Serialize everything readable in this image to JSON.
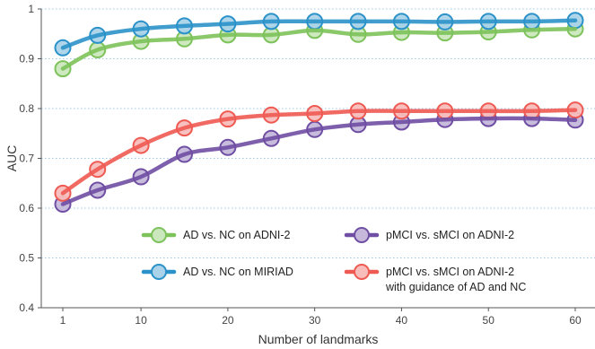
{
  "chart_data": {
    "type": "line",
    "title": "",
    "xlabel": "Number of landmarks",
    "ylabel": "AUC",
    "x_ticks": [
      1,
      10,
      20,
      30,
      40,
      50,
      60
    ],
    "y_ticks": [
      "0.4",
      "0.5",
      "0.6",
      "0.7",
      "0.8",
      "0.9",
      "1"
    ],
    "xlim": [
      1,
      60
    ],
    "ylim": [
      0.4,
      1.0
    ],
    "grid": "horizontal dotted",
    "legend_placement": "lower-right",
    "x": [
      1,
      5,
      10,
      15,
      20,
      25,
      30,
      35,
      40,
      45,
      50,
      55,
      60
    ],
    "series": [
      {
        "name": "AD vs. NC on ADNI-2",
        "color": "#7dc25a",
        "values": [
          0.88,
          0.918,
          0.935,
          0.94,
          0.948,
          0.948,
          0.957,
          0.949,
          0.953,
          0.952,
          0.954,
          0.958,
          0.96
        ]
      },
      {
        "name": "AD vs. NC on MIRIAD",
        "color": "#2b92c9",
        "values": [
          0.922,
          0.947,
          0.96,
          0.966,
          0.97,
          0.975,
          0.975,
          0.975,
          0.975,
          0.974,
          0.975,
          0.975,
          0.977
        ]
      },
      {
        "name": "pMCI vs. sMCI on ADNI-2",
        "color": "#6f4ea3",
        "values": [
          0.608,
          0.636,
          0.663,
          0.708,
          0.722,
          0.74,
          0.758,
          0.768,
          0.773,
          0.778,
          0.78,
          0.78,
          0.777
        ]
      },
      {
        "name": "pMCI vs. sMCI on ADNI-2",
        "name_line2": "with guidance of AD and NC",
        "color": "#ee5a52",
        "values": [
          0.63,
          0.678,
          0.726,
          0.761,
          0.779,
          0.787,
          0.79,
          0.795,
          0.795,
          0.795,
          0.795,
          0.795,
          0.797
        ]
      }
    ]
  }
}
